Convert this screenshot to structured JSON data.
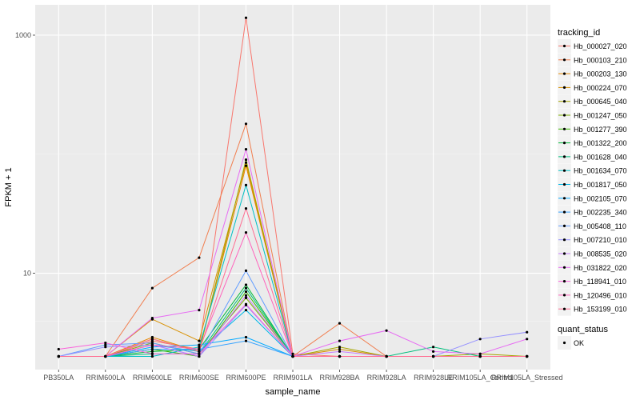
{
  "chart_data": {
    "type": "line",
    "title": "",
    "xlabel": "sample_name",
    "ylabel": "FPKM + 1",
    "y_scale": "log10",
    "ylim": [
      1.55,
      1800
    ],
    "y_ticks": [
      10,
      1000
    ],
    "y_tick_labels": [
      "10",
      "1000"
    ],
    "categories": [
      "PB350LA",
      "RRIM600LA",
      "RRIM600LE",
      "RRIM600SE",
      "RRIM600PE",
      "RRIM901LA",
      "RRIM928BA",
      "RRIM928LA",
      "RRIM928LE",
      "RRIM105LA_Control",
      "RRIM105LA_Stressed"
    ],
    "legend_title": "tracking_id",
    "series": [
      {
        "name": "Hb_000027_020",
        "color": "#F8766D",
        "values": [
          2,
          2,
          2.7,
          2.3,
          1400,
          2.1,
          2,
          2,
          2,
          2,
          2
        ]
      },
      {
        "name": "Hb_000103_210",
        "color": "#F07E4F",
        "values": [
          2,
          2,
          7.5,
          13.5,
          180,
          2,
          3.8,
          2,
          2,
          2,
          2
        ]
      },
      {
        "name": "Hb_000203_130",
        "color": "#E58700",
        "values": [
          2,
          2,
          2.9,
          2.2,
          80,
          2,
          2,
          2,
          2,
          2,
          2
        ]
      },
      {
        "name": "Hb_000224_070",
        "color": "#D89000",
        "values": [
          2,
          2,
          4.1,
          2.7,
          85,
          2,
          2.3,
          2,
          2,
          2,
          2
        ]
      },
      {
        "name": "Hb_000645_040",
        "color": "#A3A500",
        "values": [
          2,
          2,
          2.8,
          2.2,
          90,
          2,
          2.4,
          2,
          2,
          2.1,
          2
        ]
      },
      {
        "name": "Hb_001247_050",
        "color": "#7CAE00",
        "values": [
          2,
          2,
          2.6,
          2.1,
          6.2,
          2,
          2,
          2,
          2,
          2,
          2
        ]
      },
      {
        "name": "Hb_001277_390",
        "color": "#39B600",
        "values": [
          2,
          2,
          2.3,
          2,
          7,
          2,
          2,
          2,
          2,
          2,
          2
        ]
      },
      {
        "name": "Hb_001322_200",
        "color": "#00BA38",
        "values": [
          2,
          2,
          2.2,
          2.3,
          8,
          2,
          2,
          2,
          2,
          2,
          2
        ]
      },
      {
        "name": "Hb_001628_040",
        "color": "#00BF7D",
        "values": [
          2,
          2,
          2.1,
          2.1,
          7.5,
          2,
          2,
          2,
          2.4,
          2,
          2
        ]
      },
      {
        "name": "Hb_001634_070",
        "color": "#00BFC4",
        "values": [
          2,
          2,
          2,
          2.4,
          55,
          2,
          2,
          2,
          2,
          2,
          2
        ]
      },
      {
        "name": "Hb_001817_050",
        "color": "#00B8E7",
        "values": [
          2,
          2,
          2.5,
          2.2,
          4.9,
          2,
          2,
          2,
          2,
          2,
          2
        ]
      },
      {
        "name": "Hb_002105_070",
        "color": "#00A9FF",
        "values": [
          2,
          2,
          2.4,
          2.5,
          2.9,
          2,
          2,
          2,
          2,
          2,
          2
        ]
      },
      {
        "name": "Hb_002235_340",
        "color": "#35A2FF",
        "values": [
          2,
          2,
          2.3,
          2.3,
          2.7,
          2,
          2,
          2,
          2,
          2,
          2
        ]
      },
      {
        "name": "Hb_005408_110",
        "color": "#619CFF",
        "values": [
          2,
          2.5,
          2.6,
          2.1,
          10.5,
          2,
          2,
          2,
          2,
          2,
          2
        ]
      },
      {
        "name": "Hb_007210_010",
        "color": "#9590FF",
        "values": [
          2,
          2.4,
          2.5,
          2,
          5.4,
          2,
          2,
          2,
          2,
          2.8,
          3.2
        ]
      },
      {
        "name": "Hb_008535_020",
        "color": "#C77CFF",
        "values": [
          2,
          2,
          2.5,
          2,
          6.5,
          2,
          2.2,
          2,
          2,
          2,
          2
        ]
      },
      {
        "name": "Hb_031822_020",
        "color": "#E76BF3",
        "values": [
          2,
          2,
          4.2,
          4.9,
          110,
          2,
          2.7,
          3.3,
          2.2,
          2.1,
          2.8
        ]
      },
      {
        "name": "Hb_118941_010",
        "color": "#FA62DB",
        "values": [
          2.3,
          2.6,
          2.1,
          2.1,
          5.5,
          2,
          2,
          2,
          2,
          2,
          2
        ]
      },
      {
        "name": "Hb_120496_010",
        "color": "#FF62BC",
        "values": [
          2,
          2,
          2.5,
          2.3,
          22,
          2,
          2,
          2,
          2,
          2,
          2
        ]
      },
      {
        "name": "Hb_153199_010",
        "color": "#FF6C91",
        "values": [
          2,
          2,
          2.8,
          2.2,
          35,
          2,
          2,
          2,
          2,
          2,
          2
        ]
      }
    ],
    "shape_legend": {
      "title": "quant_status",
      "entries": [
        "OK"
      ]
    }
  }
}
